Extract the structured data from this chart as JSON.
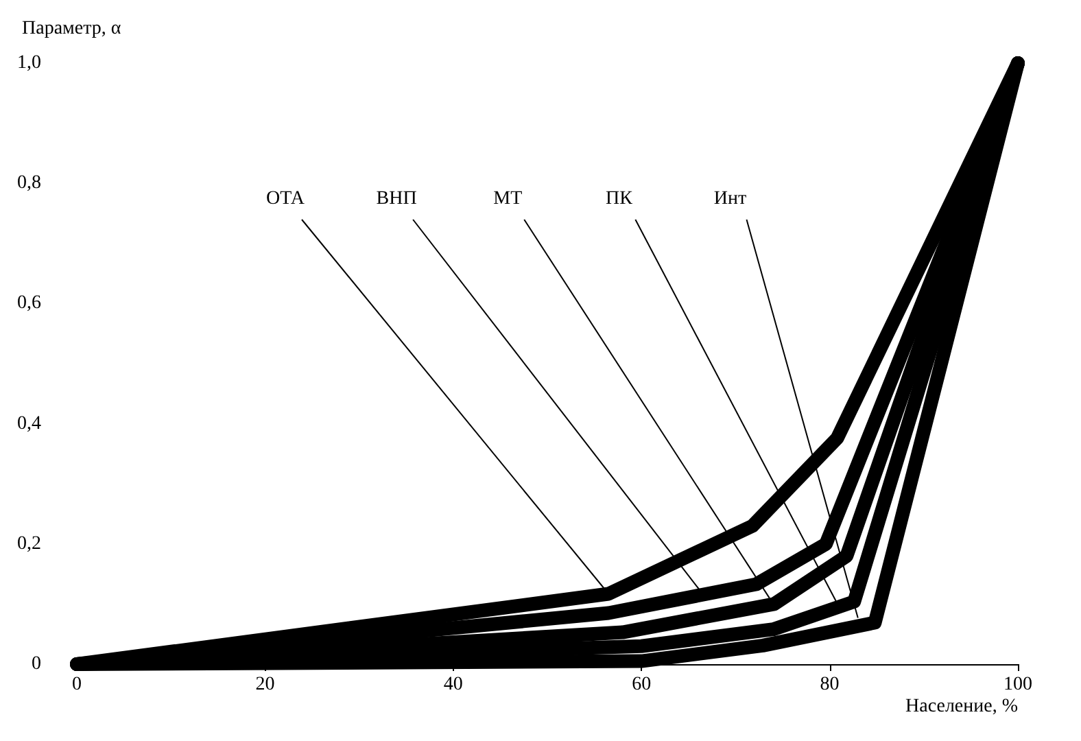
{
  "chart_data": {
    "type": "line",
    "xlabel": "Население, %",
    "ylabel": "Параметр, α",
    "xlim": [
      0,
      100
    ],
    "ylim": [
      0,
      1
    ],
    "xticks": [
      0,
      20,
      40,
      60,
      80,
      100
    ],
    "yticks": [
      {
        "value": 0,
        "label": "0"
      },
      {
        "value": 0.2,
        "label": "0,2"
      },
      {
        "value": 0.4,
        "label": "0,4"
      },
      {
        "value": 0.6,
        "label": "0,6"
      },
      {
        "value": 0.8,
        "label": "0,8"
      },
      {
        "value": 1,
        "label": "1,0"
      }
    ],
    "line_style": "solid",
    "series": [
      {
        "color": "#000000",
        "x": [
          0,
          56.5,
          71.8,
          80.8,
          100
        ],
        "values": [
          0,
          0.117,
          0.23,
          0.376,
          1
        ]
      },
      {
        "color": "#000000",
        "x": [
          0,
          56.5,
          72.2,
          79.6,
          100
        ],
        "values": [
          0,
          0.085,
          0.133,
          0.2,
          1
        ]
      },
      {
        "color": "#000000",
        "x": [
          0,
          58,
          74.1,
          81.8,
          100
        ],
        "values": [
          0,
          0.053,
          0.1,
          0.18,
          1
        ]
      },
      {
        "color": "#000000",
        "x": [
          0,
          60,
          74,
          82.6,
          100
        ],
        "values": [
          0,
          0.03,
          0.058,
          0.104,
          1
        ]
      },
      {
        "color": "#000000",
        "x": [
          0,
          60,
          72.9,
          84.8,
          100
        ],
        "values": [
          0,
          0.005,
          0.031,
          0.069,
          1
        ]
      }
    ],
    "annotations": [
      {
        "text": "ОТА",
        "x": 56.5,
        "y": 0.117
      },
      {
        "text": "ВНП",
        "x": 66.5,
        "y": 0.117
      },
      {
        "text": "МТ",
        "x": 73.6,
        "y": 0.11
      },
      {
        "text": "ПК",
        "x": 81,
        "y": 0.095
      },
      {
        "text": "Инт",
        "x": 83,
        "y": 0.077
      }
    ]
  }
}
